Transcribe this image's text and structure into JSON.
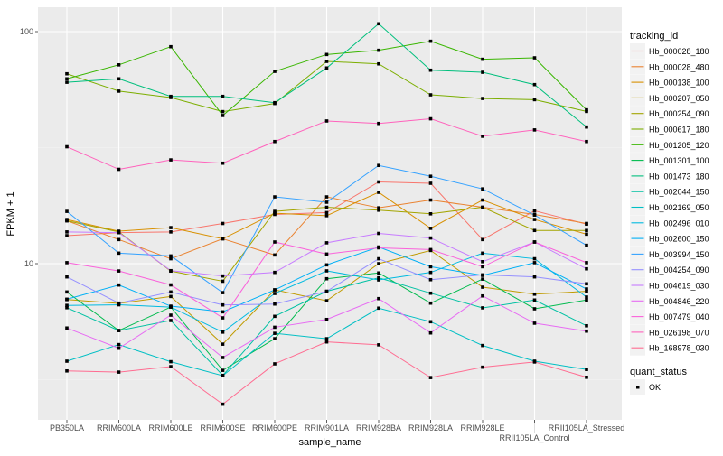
{
  "chart_data": {
    "type": "line",
    "xlabel": "sample_name",
    "ylabel": "FPKM + 1",
    "y_scale": "log10",
    "ylim": [
      2.1,
      127
    ],
    "y_ticks": [
      10,
      100
    ],
    "y_tick_labels": [
      "10",
      "100"
    ],
    "grid": true,
    "legend_position": "right",
    "background": "#EBEBEB",
    "categories": [
      "PB350LA",
      "RRIM600LA",
      "RRIM600LE",
      "RRIM600SE",
      "RRIM600PE",
      "RRIM901LA",
      "RRIM928BA",
      "RRIM928LA",
      "RRIM928LE",
      "RRII105LA_Control",
      "RRII105LA_Stressed"
    ],
    "legend_title": "tracking_id",
    "shape_legend_title": "quant_status",
    "shape_legend_items": [
      "OK"
    ],
    "series": [
      {
        "name": "Hb_000028_180",
        "color": "#F8766D",
        "values": [
          13.2,
          13.6,
          13.7,
          14.9,
          16.3,
          16.6,
          22.5,
          22.2,
          12.7,
          16.9,
          14.8
        ]
      },
      {
        "name": "Hb_000028_480",
        "color": "#EA8331",
        "values": [
          15.3,
          12.7,
          10.5,
          12.8,
          10.9,
          19.4,
          17.4,
          18.8,
          17.5,
          16.3,
          14.9
        ]
      },
      {
        "name": "Hb_000138_100",
        "color": "#D89000",
        "values": [
          15.5,
          13.8,
          14.3,
          12.8,
          16.5,
          16.1,
          20.3,
          14.2,
          18.8,
          15.5,
          13.4
        ]
      },
      {
        "name": "Hb_000207_050",
        "color": "#C09B00",
        "values": [
          7.0,
          6.74,
          7.22,
          4.5,
          7.71,
          6.92,
          10.0,
          11.4,
          7.92,
          7.39,
          7.6
        ]
      },
      {
        "name": "Hb_000254_090",
        "color": "#A3A500",
        "values": [
          15.3,
          13.7,
          9.29,
          8.4,
          16.8,
          17.5,
          17.0,
          16.4,
          17.5,
          13.9,
          13.9
        ]
      },
      {
        "name": "Hb_000617_180",
        "color": "#7CAE00",
        "values": [
          65.8,
          55.4,
          52.0,
          45.2,
          49.0,
          74.4,
          72.6,
          53.4,
          51.5,
          50.9,
          45.3
        ]
      },
      {
        "name": "Hb_001205_120",
        "color": "#39B600",
        "values": [
          62.6,
          71.9,
          86.1,
          43.5,
          67.4,
          79.7,
          83.1,
          90.9,
          76.0,
          77.1,
          46.0
        ]
      },
      {
        "name": "Hb_001301_100",
        "color": "#00BB4E",
        "values": [
          7.55,
          5.15,
          6.5,
          3.47,
          4.75,
          8.61,
          9.12,
          6.76,
          8.58,
          6.39,
          6.97
        ]
      },
      {
        "name": "Hb_001473_180",
        "color": "#00BF7D",
        "values": [
          60.5,
          62.6,
          52.6,
          52.6,
          49.4,
          69.7,
          108.1,
          68.2,
          66.8,
          59.1,
          38.8
        ]
      },
      {
        "name": "Hb_002044_150",
        "color": "#00C1A3",
        "values": [
          6.46,
          5.15,
          5.69,
          3.3,
          5.93,
          7.6,
          8.69,
          7.46,
          6.45,
          6.97,
          5.4
        ]
      },
      {
        "name": "Hb_002169_050",
        "color": "#00BFC4",
        "values": [
          3.8,
          4.48,
          3.78,
          3.29,
          5.01,
          4.75,
          6.43,
          5.62,
          4.44,
          3.8,
          3.5
        ]
      },
      {
        "name": "Hb_002496_010",
        "color": "#00BAE0",
        "values": [
          6.61,
          6.65,
          6.5,
          5.07,
          7.44,
          9.31,
          8.51,
          9.17,
          11.1,
          10.5,
          7.18
        ]
      },
      {
        "name": "Hb_002600_150",
        "color": "#00B0F6",
        "values": [
          7.03,
          8.09,
          6.56,
          6.2,
          7.71,
          9.88,
          11.8,
          9.7,
          8.9,
          10.1,
          7.78
        ]
      },
      {
        "name": "Hb_003994_150",
        "color": "#35A2FF",
        "values": [
          16.8,
          11.1,
          10.8,
          7.5,
          19.4,
          18.4,
          26.5,
          23.8,
          21.0,
          16.2,
          12.0
        ]
      },
      {
        "name": "Hb_004254_090",
        "color": "#9590FF",
        "values": [
          8.77,
          6.76,
          7.55,
          6.64,
          6.7,
          7.6,
          10.5,
          8.53,
          8.95,
          8.77,
          8.19
        ]
      },
      {
        "name": "Hb_004619_030",
        "color": "#C77CFF",
        "values": [
          13.7,
          13.6,
          9.33,
          8.85,
          9.17,
          12.3,
          13.5,
          12.9,
          10.2,
          12.4,
          9.5
        ]
      },
      {
        "name": "Hb_004846_220",
        "color": "#E76BF3",
        "values": [
          5.28,
          4.32,
          6.0,
          3.94,
          5.32,
          5.75,
          7.07,
          5.03,
          7.26,
          5.54,
          5.12
        ]
      },
      {
        "name": "Hb_007479_040",
        "color": "#FA62DB",
        "values": [
          10.1,
          9.3,
          8.1,
          5.84,
          12.4,
          11.0,
          11.7,
          11.5,
          9.7,
          12.4,
          10.1
        ]
      },
      {
        "name": "Hb_026198_070",
        "color": "#FF62BC",
        "values": [
          31.9,
          25.5,
          28.0,
          27.1,
          33.6,
          41.2,
          40.2,
          42.1,
          35.4,
          37.7,
          33.6
        ]
      },
      {
        "name": "Hb_168978_030",
        "color": "#FF6C91",
        "values": [
          3.45,
          3.41,
          3.6,
          2.48,
          3.7,
          4.6,
          4.47,
          3.23,
          3.58,
          3.77,
          3.24
        ]
      }
    ]
  }
}
